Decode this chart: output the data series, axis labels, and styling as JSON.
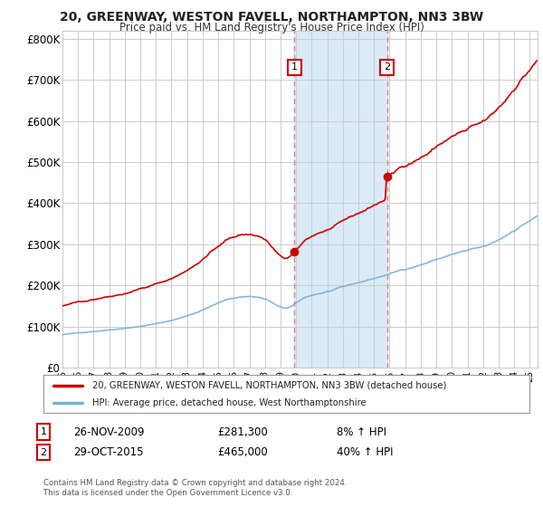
{
  "title1": "20, GREENWAY, WESTON FAVELL, NORTHAMPTON, NN3 3BW",
  "title2": "Price paid vs. HM Land Registry's House Price Index (HPI)",
  "ylabel_ticks": [
    "£0",
    "£100K",
    "£200K",
    "£300K",
    "£400K",
    "£500K",
    "£600K",
    "£700K",
    "£800K"
  ],
  "ytick_vals": [
    0,
    100000,
    200000,
    300000,
    400000,
    500000,
    600000,
    700000,
    800000
  ],
  "ylim": [
    0,
    820000
  ],
  "xlim_start": 1995.0,
  "xlim_end": 2025.5,
  "sale1_year": 2009.9,
  "sale1_price": 281300,
  "sale2_year": 2015.83,
  "sale2_price": 465000,
  "legend_line1": "20, GREENWAY, WESTON FAVELL, NORTHAMPTON, NN3 3BW (detached house)",
  "legend_line2": "HPI: Average price, detached house, West Northamptonshire",
  "table_row1_date": "26-NOV-2009",
  "table_row1_price": "£281,300",
  "table_row1_hpi": "8% ↑ HPI",
  "table_row2_date": "29-OCT-2015",
  "table_row2_price": "£465,000",
  "table_row2_hpi": "40% ↑ HPI",
  "footer": "Contains HM Land Registry data © Crown copyright and database right 2024.\nThis data is licensed under the Open Government Licence v3.0.",
  "line_color_red": "#CC0000",
  "line_color_blue": "#7AAFD4",
  "shaded_color": "#DAEAF7",
  "vline_color": "#E08080",
  "bg_color": "#FFFFFF",
  "grid_color": "#CCCCCC",
  "label_box_color": "#CC0000"
}
